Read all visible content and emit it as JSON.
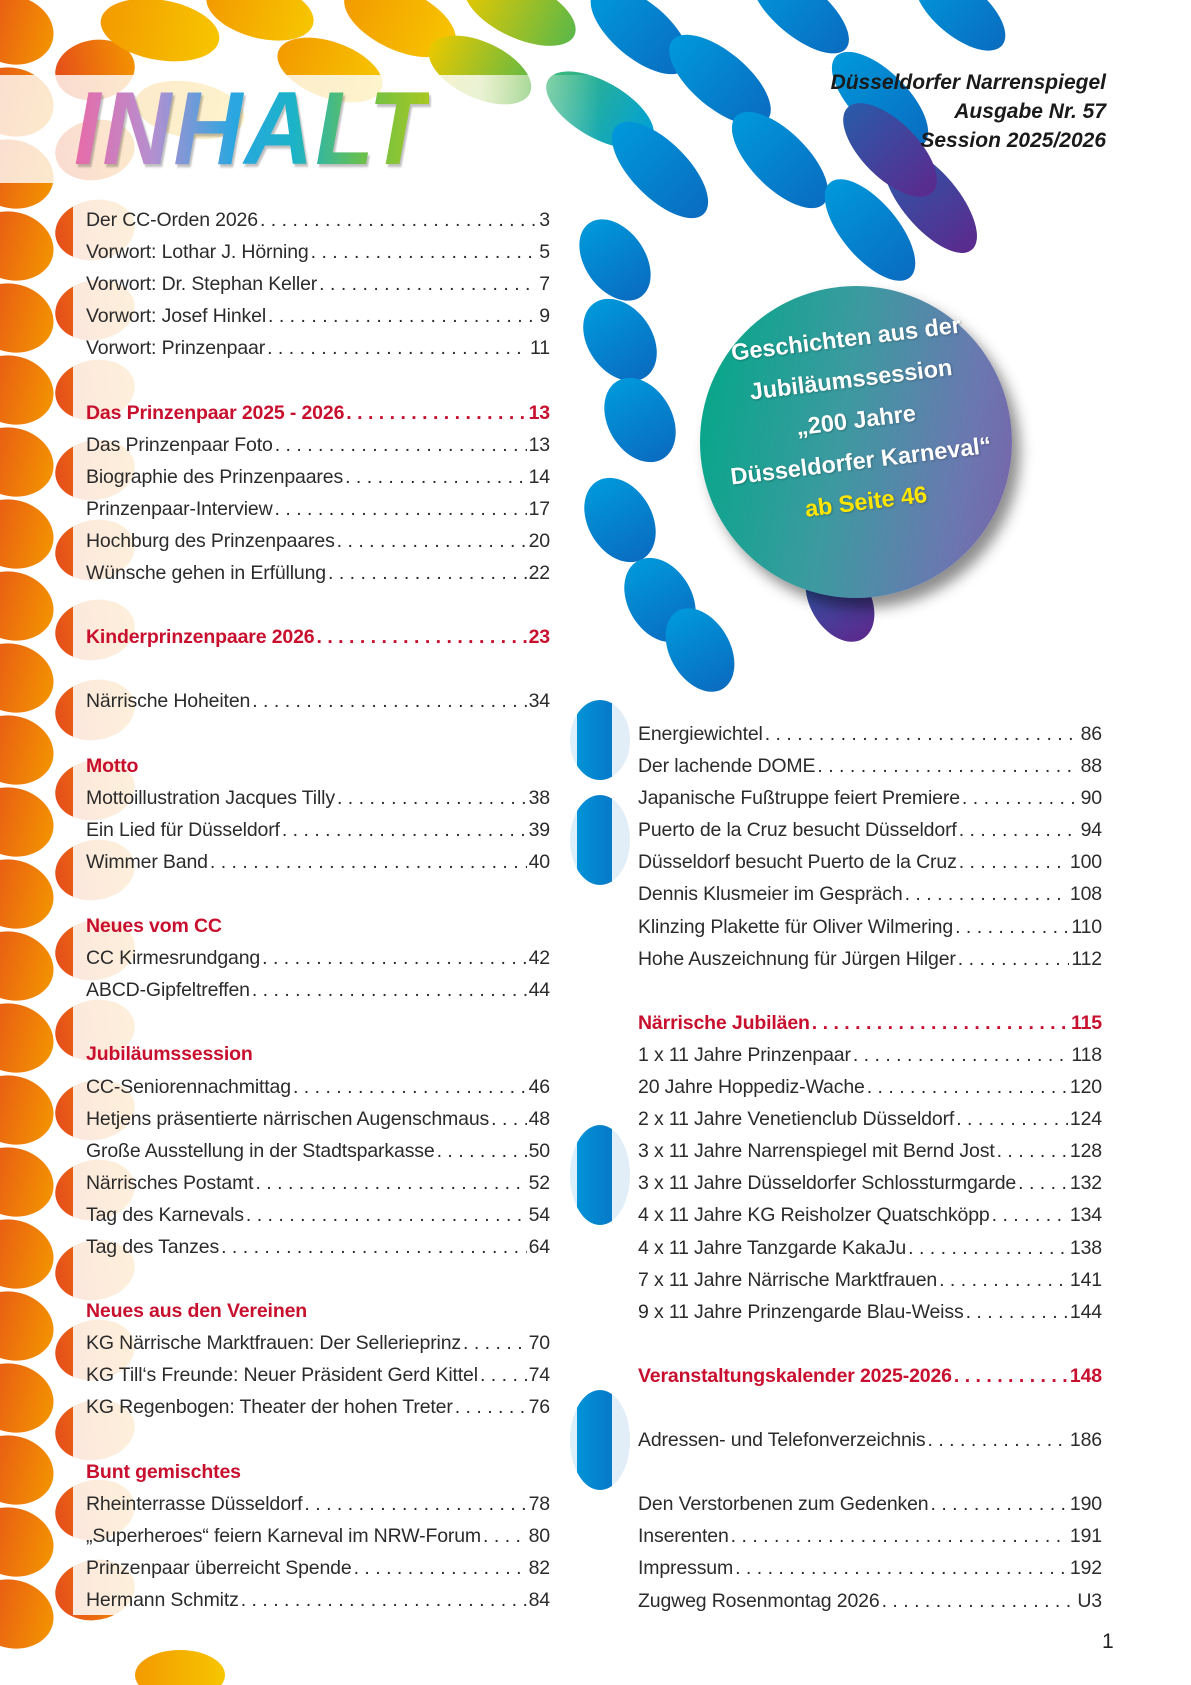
{
  "title": "INHALT",
  "publication": {
    "name": "Düsseldorfer Narrenspiegel",
    "issue": "Ausgabe Nr. 57",
    "session": "Session 2025/2026"
  },
  "badge": {
    "lines": [
      "Geschichten aus der",
      "Jubiläumssession",
      "„200 Jahre",
      "Düsseldorfer Karneval“"
    ],
    "highlight": "ab Seite 46"
  },
  "colors": {
    "heading": "#c8102e",
    "highlight": "#ffe600",
    "badge_from": "#00a887",
    "badge_to": "#7a62a8"
  },
  "toc_left": [
    {
      "items": [
        {
          "title": "Der CC-Orden 2026",
          "page": "3"
        },
        {
          "title": "Vorwort: Lothar J. Hörning",
          "page": "5"
        },
        {
          "title": "Vorwort: Dr. Stephan Keller",
          "page": "7"
        },
        {
          "title": "Vorwort: Josef Hinkel",
          "page": "9"
        },
        {
          "title": "Vorwort: Prinzenpaar",
          "page": "11"
        }
      ]
    },
    {
      "heading": {
        "title": "Das Prinzenpaar 2025 - 2026",
        "page": "13"
      },
      "items": [
        {
          "title": "Das Prinzenpaar Foto",
          "page": "13"
        },
        {
          "title": "Biographie des Prinzenpaares",
          "page": "14"
        },
        {
          "title": "Prinzenpaar-Interview",
          "page": "17"
        },
        {
          "title": "Hochburg des Prinzenpaares",
          "page": "20"
        },
        {
          "title": "Wünsche gehen in Erfüllung",
          "page": "22"
        }
      ]
    },
    {
      "heading": {
        "title": "Kinderprinzenpaare 2026",
        "page": "23"
      },
      "items": []
    },
    {
      "items": [
        {
          "title": "Närrische Hoheiten",
          "page": "34"
        }
      ]
    },
    {
      "heading": {
        "title": "Motto"
      },
      "items": [
        {
          "title": "Mottoillustration Jacques Tilly",
          "page": "38"
        },
        {
          "title": "Ein Lied für Düsseldorf",
          "page": "39"
        },
        {
          "title": "Wimmer Band",
          "page": "40"
        }
      ]
    },
    {
      "heading": {
        "title": "Neues vom CC"
      },
      "items": [
        {
          "title": "CC Kirmesrundgang",
          "page": "42"
        },
        {
          "title": "ABCD-Gipfeltreffen",
          "page": "44"
        }
      ]
    },
    {
      "heading": {
        "title": "Jubiläumssession"
      },
      "items": [
        {
          "title": "CC-Seniorennachmittag",
          "page": "46"
        },
        {
          "title": "Hetjens präsentierte närrischen Augenschmaus",
          "page": "48"
        },
        {
          "title": "Große Ausstellung in der Stadtsparkasse",
          "page": "50"
        },
        {
          "title": "Närrisches Postamt",
          "page": "52"
        },
        {
          "title": "Tag des Karnevals",
          "page": "54"
        },
        {
          "title": "Tag des Tanzes",
          "page": "64"
        }
      ]
    },
    {
      "heading": {
        "title": "Neues aus den Vereinen"
      },
      "items": [
        {
          "title": "KG Närrische Marktfrauen: Der Sellerieprinz",
          "page": "70"
        },
        {
          "title": "KG Till‘s Freunde: Neuer Präsident Gerd Kittel",
          "page": "74"
        },
        {
          "title": "KG Regenbogen: Theater der hohen Treter",
          "page": "76"
        }
      ]
    },
    {
      "heading": {
        "title": "Bunt gemischtes"
      },
      "items": [
        {
          "title": "Rheinterrasse Düsseldorf",
          "page": "78"
        },
        {
          "title": "„Superheroes“ feiern Karneval im NRW-Forum",
          "page": "80"
        },
        {
          "title": "Prinzenpaar überreicht Spende",
          "page": "82"
        },
        {
          "title": "Hermann Schmitz",
          "page": "84"
        }
      ]
    }
  ],
  "toc_right": [
    {
      "items": [
        {
          "title": "Energiewichtel",
          "page": "86"
        },
        {
          "title": "Der lachende DOME",
          "page": "88"
        },
        {
          "title": "Japanische Fußtruppe feiert Premiere",
          "page": "90"
        },
        {
          "title": "Puerto de la Cruz besucht Düsseldorf",
          "page": "94"
        },
        {
          "title": "Düsseldorf besucht Puerto de la Cruz",
          "page": "100"
        },
        {
          "title": "Dennis Klusmeier im Gespräch",
          "page": "108"
        },
        {
          "title": "Klinzing Plakette für Oliver Wilmering",
          "page": "110"
        },
        {
          "title": "Hohe Auszeichnung für Jürgen Hilger",
          "page": "112"
        }
      ]
    },
    {
      "heading": {
        "title": "Närrische Jubiläen",
        "page": "115"
      },
      "items": [
        {
          "title": "1 x 11 Jahre Prinzenpaar",
          "page": "118"
        },
        {
          "title": "20 Jahre Hoppediz-Wache",
          "page": "120"
        },
        {
          "title": "2 x 11 Jahre Venetienclub Düsseldorf",
          "page": "124"
        },
        {
          "title": "3 x 11 Jahre Narrenspiegel mit Bernd Jost",
          "page": "128"
        },
        {
          "title": "3 x 11 Jahre Düsseldorfer Schlossturmgarde",
          "page": "132"
        },
        {
          "title": "4 x 11 Jahre KG Reisholzer Quatschköpp",
          "page": "134"
        },
        {
          "title": "4 x 11 Jahre Tanzgarde KakaJu",
          "page": "138"
        },
        {
          "title": "7 x 11 Jahre Närrische Marktfrauen",
          "page": "141"
        },
        {
          "title": "9 x 11 Jahre Prinzengarde Blau-Weiss",
          "page": "144"
        }
      ]
    },
    {
      "heading": {
        "title": "Veranstaltungskalender 2025-2026",
        "page": "148"
      },
      "items": []
    },
    {
      "items": [
        {
          "title": "Adressen- und Telefonverzeichnis",
          "page": "186"
        }
      ]
    },
    {
      "items": [
        {
          "title": "Den Verstorbenen zum Gedenken",
          "page": "190"
        },
        {
          "title": "Inserenten",
          "page": "191"
        },
        {
          "title": "Impressum",
          "page": "192"
        },
        {
          "title": "Zugweg Rosenmontag 2026",
          "page": "U3"
        }
      ]
    }
  ],
  "page_number": "1"
}
